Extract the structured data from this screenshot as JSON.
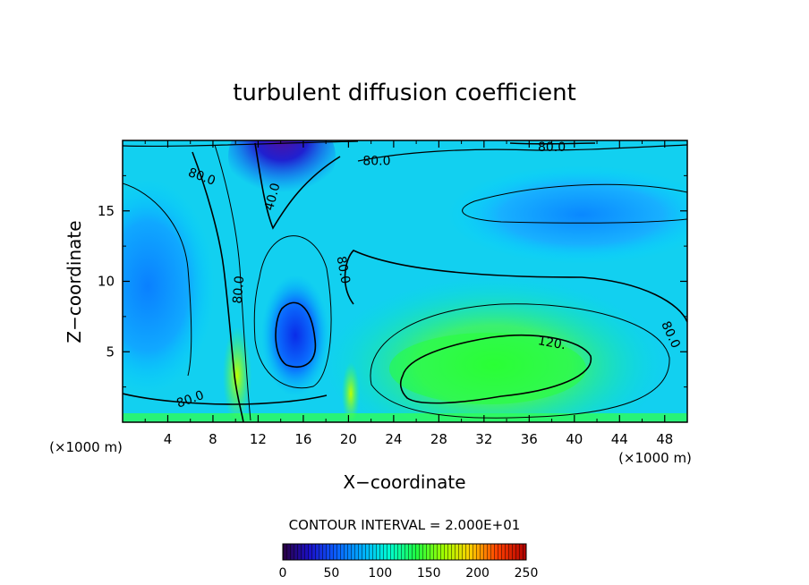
{
  "chart_data": {
    "type": "heatmap",
    "title": "turbulent diffusion coefficient",
    "xlabel": "X−coordinate",
    "ylabel": "Z−coordinate",
    "x_unit": "(×1000 m)",
    "z_unit": "(×1000 m)",
    "xlim": [
      0,
      50
    ],
    "ylim": [
      0,
      20
    ],
    "x_ticks": [
      "4",
      "8",
      "12",
      "16",
      "20",
      "24",
      "28",
      "32",
      "36",
      "40",
      "44",
      "48"
    ],
    "y_ticks": [
      "5",
      "10",
      "15"
    ],
    "contour_interval_text": "CONTOUR INTERVAL = 2.000E+01",
    "colorbar": {
      "min": 0,
      "max": 250,
      "tick_labels": [
        "0",
        "50",
        "100",
        "150",
        "200",
        "250"
      ],
      "colors": [
        "#2a003f",
        "#1a10c8",
        "#0a60ff",
        "#00b0ff",
        "#00ffd0",
        "#20ff40",
        "#a0ff00",
        "#ffd000",
        "#ff4000",
        "#b00000"
      ]
    },
    "contour_labels": [
      {
        "text": "80.0",
        "x": 7.0,
        "z": 17.4
      },
      {
        "text": "40.0",
        "x": 13.3,
        "z": 16.0
      },
      {
        "text": "80.0",
        "x": 10.3,
        "z": 9.4
      },
      {
        "text": "80.0",
        "x": 19.5,
        "z": 10.8
      },
      {
        "text": "80.0",
        "x": 22.5,
        "z": 18.5
      },
      {
        "text": "80.0",
        "x": 38.0,
        "z": 19.5
      },
      {
        "text": "120.",
        "x": 38.0,
        "z": 5.6
      },
      {
        "text": "80.0",
        "x": 48.5,
        "z": 6.2
      },
      {
        "text": "80.0",
        "x": 6.0,
        "z": 1.6
      }
    ],
    "field_features": [
      {
        "x": 30.5,
        "z": 4.5,
        "value": 125
      },
      {
        "x": 15.5,
        "z": 6.2,
        "value": 40
      },
      {
        "x": 14.0,
        "z": 18.0,
        "value": 25
      },
      {
        "x": 3.0,
        "z": 10.5,
        "value": 65
      },
      {
        "x": 39.0,
        "z": 15.0,
        "value": 65
      },
      {
        "x": 10.2,
        "z": 4.0,
        "value": 110
      },
      {
        "x": 20.2,
        "z": 2.5,
        "value": 110
      }
    ]
  }
}
